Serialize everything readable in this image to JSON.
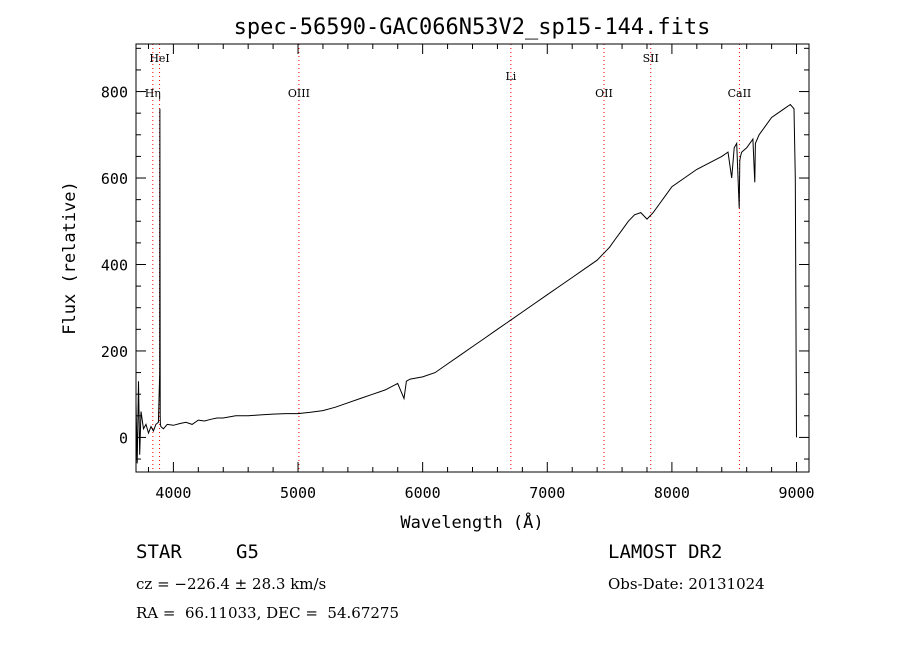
{
  "chart_data": {
    "type": "line",
    "title": "spec-56590-GAC066N53V2_sp15-144.fits",
    "xlabel": "Wavelength (Å)",
    "ylabel": "Flux (relative)",
    "xlim": [
      3700,
      9100
    ],
    "ylim": [
      -80,
      910
    ],
    "xticks": [
      4000,
      5000,
      6000,
      7000,
      8000,
      9000
    ],
    "yticks": [
      0,
      200,
      400,
      600,
      800
    ],
    "grid": false,
    "series": [
      {
        "x": [
          3700,
          3710,
          3720,
          3730,
          3740,
          3760,
          3780,
          3800,
          3820,
          3840,
          3860,
          3880,
          3890,
          3892,
          3894,
          3896,
          3900,
          3920,
          3950,
          4000,
          4050,
          4100,
          4150,
          4200,
          4250,
          4300,
          4350,
          4400,
          4500,
          4600,
          4700,
          4800,
          4900,
          5000,
          5100,
          5200,
          5300,
          5400,
          5500,
          5600,
          5700,
          5800,
          5850,
          5860,
          5870,
          5900,
          6000,
          6100,
          6200,
          6300,
          6400,
          6500,
          6600,
          6700,
          6800,
          6900,
          7000,
          7100,
          7200,
          7300,
          7400,
          7450,
          7500,
          7550,
          7600,
          7650,
          7700,
          7750,
          7800,
          7850,
          7900,
          7950,
          8000,
          8100,
          8200,
          8300,
          8400,
          8450,
          8480,
          8500,
          8520,
          8540,
          8545,
          8550,
          8560,
          8600,
          8650,
          8660,
          8665,
          8670,
          8700,
          8750,
          8800,
          8850,
          8900,
          8950,
          8980,
          8990,
          9000
        ],
        "y": [
          80,
          -60,
          130,
          -40,
          60,
          20,
          30,
          10,
          25,
          15,
          30,
          35,
          150,
          760,
          50,
          30,
          25,
          20,
          30,
          28,
          32,
          35,
          30,
          40,
          38,
          42,
          45,
          45,
          50,
          50,
          52,
          54,
          55,
          55,
          58,
          62,
          70,
          80,
          90,
          100,
          110,
          125,
          90,
          110,
          130,
          135,
          140,
          150,
          170,
          190,
          210,
          230,
          250,
          270,
          290,
          310,
          330,
          350,
          370,
          390,
          410,
          425,
          440,
          460,
          480,
          500,
          515,
          520,
          505,
          520,
          540,
          560,
          580,
          600,
          620,
          635,
          650,
          660,
          600,
          670,
          680,
          530,
          640,
          650,
          660,
          670,
          690,
          620,
          590,
          680,
          700,
          720,
          740,
          750,
          760,
          770,
          760,
          600,
          0
        ]
      }
    ],
    "line_markers": [
      {
        "label": "HeI",
        "x": 3889,
        "level": "upper"
      },
      {
        "label": "Hη",
        "x": 3835,
        "level": "lower"
      },
      {
        "label": "OIII",
        "x": 5007,
        "level": "lower"
      },
      {
        "label": "Li",
        "x": 6708,
        "level": "middle"
      },
      {
        "label": "OII",
        "x": 7455,
        "level": "lower"
      },
      {
        "label": "SII",
        "x": 7830,
        "level": "upper"
      },
      {
        "label": "CaII",
        "x": 8542,
        "level": "lower"
      }
    ],
    "line_color": "#000000",
    "marker_color": "#ff0000"
  },
  "info": {
    "object_class": "STAR",
    "subclass": "G5",
    "survey": "LAMOST DR2",
    "redshift": "cz = −226.4 ± 28.3 km/s",
    "obs_date": "Obs-Date: 20131024",
    "coords": "RA =  66.11033, DEC =  54.67275"
  }
}
